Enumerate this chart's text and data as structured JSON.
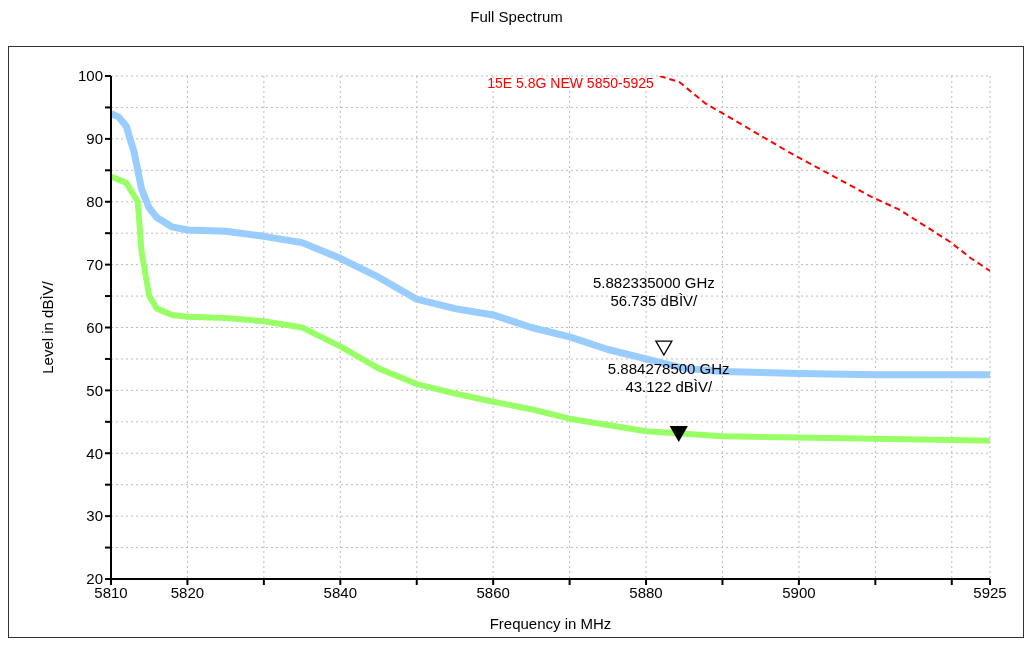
{
  "chart_data": {
    "type": "line",
    "title": "Full Spectrum",
    "xlabel": "Frequency in MHz",
    "ylabel": "Level in dBÌV/",
    "xlim": [
      5810,
      5925
    ],
    "xticks": [
      5810,
      5820,
      {
        "value": 5830,
        "label": null
      },
      5840,
      {
        "value": 5850,
        "label": null
      },
      5860,
      {
        "value": 5870,
        "label": null
      },
      5880,
      {
        "value": 5890,
        "label": null
      },
      5900,
      {
        "value": 5910,
        "label": null
      },
      {
        "value": 5920,
        "label": null
      },
      5925
    ],
    "ylim": [
      20,
      100
    ],
    "yticks": [
      20,
      {
        "value": 25,
        "label": null
      },
      30,
      {
        "value": 35,
        "label": null
      },
      40,
      {
        "value": 45,
        "label": null
      },
      50,
      {
        "value": 55,
        "label": null
      },
      60,
      {
        "value": 65,
        "label": null
      },
      70,
      {
        "value": 75,
        "label": null
      },
      80,
      {
        "value": 85,
        "label": null
      },
      90,
      {
        "value": 95,
        "label": null
      },
      100
    ],
    "grid": true,
    "legend": false,
    "marker": "none",
    "series": [
      {
        "color": "#99ccff",
        "line_style": "solid",
        "x": [
          5810,
          5811,
          5812,
          5813,
          5814,
          5815,
          5816,
          5818,
          5820,
          5825,
          5830,
          5835,
          5840,
          5845,
          5850,
          5855,
          5860,
          5865,
          5870,
          5875,
          5880,
          5885,
          5890,
          5900,
          5910,
          5920,
          5925
        ],
        "values": [
          94,
          93.5,
          92,
          88,
          82,
          79,
          77.5,
          76,
          75.5,
          75.3,
          74.5,
          73.5,
          71,
          68,
          64.5,
          63,
          62,
          60,
          58.5,
          56.5,
          55,
          53.5,
          53,
          52.7,
          52.5,
          52.5,
          52.5
        ]
      },
      {
        "color": "#99ff66",
        "line_style": "solid",
        "x": [
          5810,
          5812,
          5813.5,
          5814,
          5815,
          5816,
          5818,
          5820,
          5825,
          5830,
          5835,
          5840,
          5845,
          5850,
          5855,
          5860,
          5865,
          5870,
          5875,
          5880,
          5885,
          5890,
          5900,
          5910,
          5920,
          5925
        ],
        "values": [
          84,
          83,
          80,
          72,
          65,
          63,
          62,
          61.7,
          61.5,
          61,
          60,
          57,
          53.5,
          51,
          49.5,
          48.2,
          47,
          45.5,
          44.5,
          43.5,
          43.1,
          42.7,
          42.5,
          42.3,
          42.1,
          42
        ]
      },
      {
        "type": "scatter",
        "color": "#000000",
        "marker": "triangle",
        "x": [
          5882.335,
          5884.2785
        ],
        "values": [
          56.735,
          43.122
        ]
      },
      {
        "name": "15E 5.8G NEW 5850-5925",
        "color": "#ff0000",
        "line_style": "dashed",
        "x": [
          5881.8,
          5884.4,
          5887.7,
          5889.7,
          5898.8,
          5909.3,
          5913.2,
          5919.8,
          5922.4,
          5925
        ],
        "values": [
          100,
          99,
          95.7,
          94.3,
          87.8,
          80.9,
          78.7,
          73.6,
          71.1,
          69
        ]
      }
    ],
    "annotations": [
      "5.882335000 GHz\n56.735 dBÌV/",
      "5.884278500 GHz\n43.122 dBÌV/"
    ]
  }
}
